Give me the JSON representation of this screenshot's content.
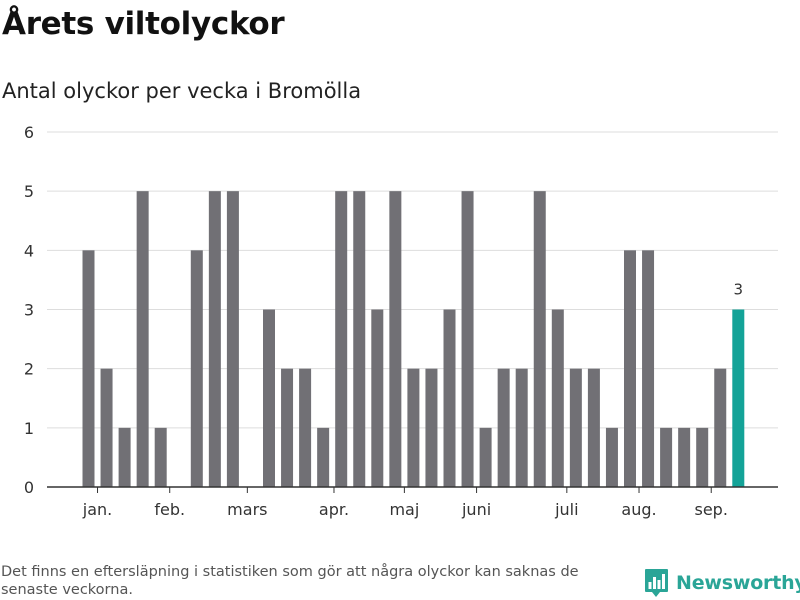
{
  "header": {
    "title": "Årets viltolyckor",
    "subtitle": "Antal olyckor per vecka i Bromölla"
  },
  "footer": {
    "note": "Det finns en eftersläpning i statistiken som gör att några olyckor kan saknas de senaste veckorna.",
    "brand": "Newsworthy",
    "brand_icon": "bar-chart-logo-icon"
  },
  "colors": {
    "bar": "#717075",
    "highlight": "#14a398",
    "grid": "#dddddd",
    "axis": "#333333",
    "brand": "#2aa597"
  },
  "chart_data": {
    "type": "bar",
    "title": "Antal olyckor per vecka i Bromölla",
    "xlabel": "",
    "ylabel": "",
    "ylim": [
      0,
      6
    ],
    "yticks": [
      0,
      1,
      2,
      3,
      4,
      5,
      6
    ],
    "grid": true,
    "weeks": [
      1,
      2,
      3,
      4,
      5,
      6,
      7,
      8,
      9,
      10,
      11,
      12,
      13,
      14,
      15,
      16,
      17,
      18,
      19,
      20,
      21,
      22,
      23,
      24,
      25,
      26,
      27,
      28,
      29,
      30,
      31,
      32,
      33,
      34,
      35,
      36,
      37,
      38,
      39,
      40,
      41
    ],
    "values": [
      4,
      2,
      1,
      5,
      1,
      0,
      4,
      5,
      5,
      0,
      3,
      2,
      2,
      1,
      5,
      5,
      3,
      5,
      2,
      2,
      3,
      5,
      1,
      2,
      2,
      5,
      3,
      2,
      2,
      1,
      4,
      4,
      1,
      1,
      1,
      2,
      3,
      null,
      null,
      null,
      null
    ],
    "highlight_index": 36,
    "highlight_label": "3",
    "month_labels": [
      {
        "label": "jan.",
        "week": 1.5
      },
      {
        "label": "feb.",
        "week": 5.5
      },
      {
        "label": "mars",
        "week": 9.8
      },
      {
        "label": "apr.",
        "week": 14.6
      },
      {
        "label": "maj",
        "week": 18.5
      },
      {
        "label": "juni",
        "week": 22.5
      },
      {
        "label": "juli",
        "week": 27.5
      },
      {
        "label": "aug.",
        "week": 31.5
      },
      {
        "label": "sep.",
        "week": 35.5
      }
    ]
  }
}
